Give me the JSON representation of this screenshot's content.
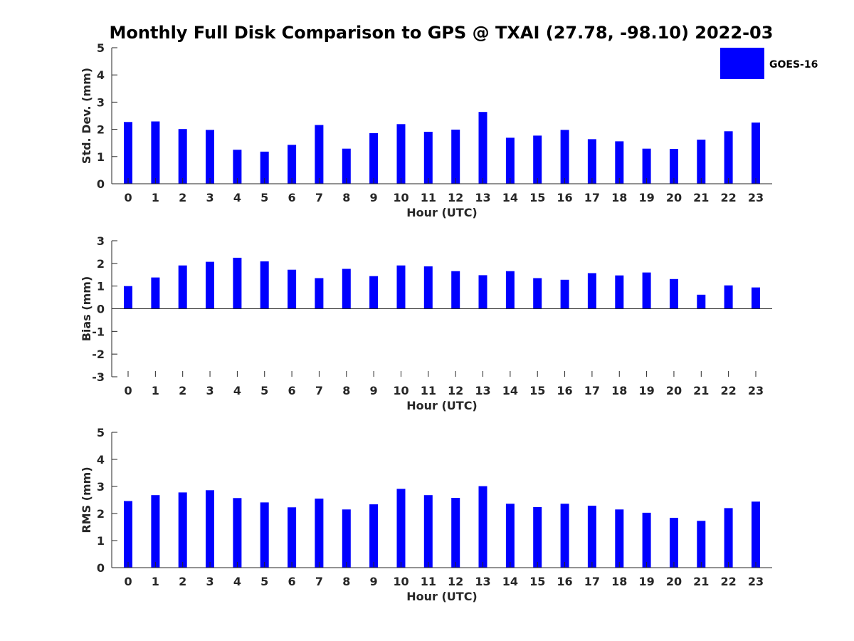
{
  "figure": {
    "title": "Monthly Full Disk Comparison to GPS @ TXAI (27.78, -98.10) 2022-03",
    "legend": {
      "label": "GOES-16",
      "color": "#0000ff",
      "placement": "top-right"
    }
  },
  "chart_data": [
    {
      "type": "bar",
      "xlabel": "Hour (UTC)",
      "ylabel": "Std. Dev. (mm)",
      "ylim": [
        0,
        5
      ],
      "yticks": [
        0,
        1,
        2,
        3,
        4,
        5
      ],
      "categories": [
        "0",
        "1",
        "2",
        "3",
        "4",
        "5",
        "6",
        "7",
        "8",
        "9",
        "10",
        "11",
        "12",
        "13",
        "14",
        "15",
        "16",
        "17",
        "18",
        "19",
        "20",
        "21",
        "22",
        "23"
      ],
      "series": [
        {
          "name": "GOES-16",
          "color": "#0000ff",
          "values": [
            2.27,
            2.29,
            2.01,
            1.98,
            1.25,
            1.18,
            1.43,
            2.16,
            1.29,
            1.86,
            2.19,
            1.91,
            1.99,
            2.64,
            1.69,
            1.77,
            1.98,
            1.64,
            1.56,
            1.29,
            1.28,
            1.62,
            1.93,
            2.25
          ]
        }
      ],
      "grid": false
    },
    {
      "type": "bar",
      "xlabel": "Hour (UTC)",
      "ylabel": "Bias (mm)",
      "ylim": [
        -3,
        3
      ],
      "yticks": [
        -3,
        -2,
        -1,
        0,
        1,
        2,
        3
      ],
      "categories": [
        "0",
        "1",
        "2",
        "3",
        "4",
        "5",
        "6",
        "7",
        "8",
        "9",
        "10",
        "11",
        "12",
        "13",
        "14",
        "15",
        "16",
        "17",
        "18",
        "19",
        "20",
        "21",
        "22",
        "23"
      ],
      "series": [
        {
          "name": "GOES-16",
          "color": "#0000ff",
          "values": [
            1.0,
            1.38,
            1.91,
            2.07,
            2.25,
            2.09,
            1.72,
            1.35,
            1.76,
            1.44,
            1.91,
            1.87,
            1.66,
            1.48,
            1.66,
            1.35,
            1.28,
            1.57,
            1.47,
            1.6,
            1.31,
            0.62,
            1.03,
            0.94
          ]
        }
      ],
      "grid": false
    },
    {
      "type": "bar",
      "xlabel": "Hour (UTC)",
      "ylabel": "RMS (mm)",
      "ylim": [
        0,
        5
      ],
      "yticks": [
        0,
        1,
        2,
        3,
        4,
        5
      ],
      "categories": [
        "0",
        "1",
        "2",
        "3",
        "4",
        "5",
        "6",
        "7",
        "8",
        "9",
        "10",
        "11",
        "12",
        "13",
        "14",
        "15",
        "16",
        "17",
        "18",
        "19",
        "20",
        "21",
        "22",
        "23"
      ],
      "series": [
        {
          "name": "GOES-16",
          "color": "#0000ff",
          "values": [
            2.46,
            2.68,
            2.78,
            2.86,
            2.57,
            2.41,
            2.23,
            2.55,
            2.15,
            2.34,
            2.91,
            2.68,
            2.58,
            3.01,
            2.36,
            2.24,
            2.36,
            2.29,
            2.15,
            2.03,
            1.84,
            1.73,
            2.2,
            2.44
          ]
        }
      ],
      "grid": false
    }
  ]
}
